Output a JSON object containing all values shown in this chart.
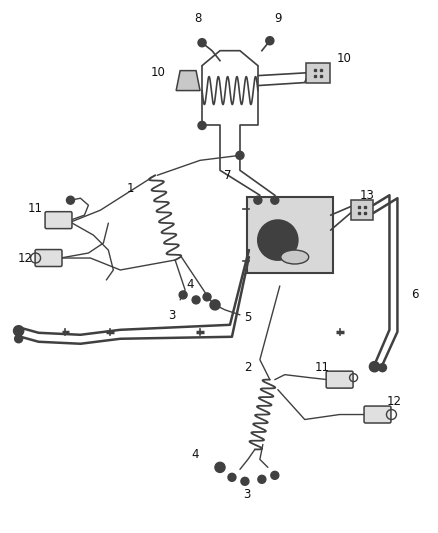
{
  "background_color": "#ffffff",
  "line_color": "#404040",
  "label_color": "#111111",
  "fig_width": 4.38,
  "fig_height": 5.33,
  "dpi": 100
}
